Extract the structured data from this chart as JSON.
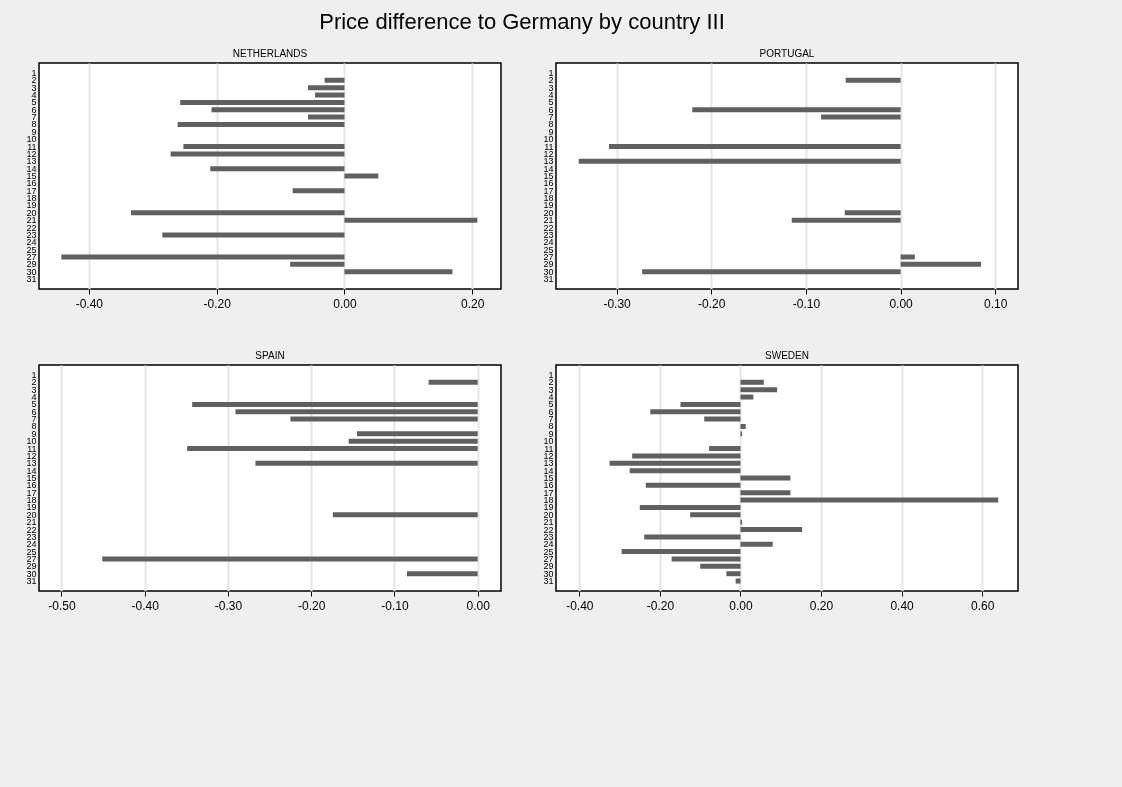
{
  "chart_data": [
    {
      "type": "bar",
      "orientation": "horizontal",
      "title": "Price difference to Germany by country III",
      "subtitle": "NETHERLANDS",
      "categories": [
        "1",
        "2",
        "3",
        "4",
        "5",
        "6",
        "7",
        "8",
        "9",
        "10",
        "11",
        "12",
        "13",
        "14",
        "15",
        "16",
        "17",
        "18",
        "19",
        "20",
        "21",
        "22",
        "23",
        "24",
        "25",
        "27",
        "29",
        "30",
        "31"
      ],
      "values": [
        null,
        -0.031,
        -0.057,
        -0.046,
        -0.257,
        -0.208,
        -0.057,
        -0.261,
        null,
        null,
        -0.252,
        -0.272,
        null,
        -0.21,
        0.053,
        null,
        -0.081,
        null,
        null,
        -0.334,
        0.208,
        null,
        -0.285,
        null,
        null,
        -0.443,
        -0.085,
        0.169,
        null
      ],
      "color": "#606060",
      "xlim": [
        -0.478,
        0.245
      ],
      "xticks": [
        {
          "value": -0.4,
          "label": "-0.40"
        },
        {
          "value": -0.2,
          "label": "-0.20"
        },
        {
          "value": 0,
          "label": "0.00"
        },
        {
          "value": 0.2,
          "label": "0.20"
        }
      ],
      "grid": "x"
    },
    {
      "type": "bar",
      "orientation": "horizontal",
      "subtitle": "PORTUGAL",
      "categories": [
        "1",
        "2",
        "3",
        "4",
        "5",
        "6",
        "7",
        "8",
        "9",
        "10",
        "11",
        "12",
        "13",
        "14",
        "15",
        "16",
        "17",
        "18",
        "19",
        "20",
        "21",
        "22",
        "23",
        "24",
        "25",
        "27",
        "29",
        "30",
        "31"
      ],
      "values": [
        null,
        -0.058,
        null,
        null,
        null,
        -0.22,
        -0.084,
        null,
        null,
        null,
        -0.308,
        null,
        -0.34,
        null,
        null,
        null,
        null,
        null,
        null,
        -0.059,
        -0.115,
        null,
        null,
        null,
        null,
        0.015,
        0.085,
        -0.273,
        null
      ],
      "color": "#606060",
      "xlim": [
        -0.364,
        0.124
      ],
      "xticks": [
        {
          "value": -0.3,
          "label": "-0.30"
        },
        {
          "value": -0.2,
          "label": "-0.20"
        },
        {
          "value": -0.1,
          "label": "-0.10"
        },
        {
          "value": 0,
          "label": "0.00"
        },
        {
          "value": 0.1,
          "label": "0.10"
        }
      ],
      "grid": "x"
    },
    {
      "type": "bar",
      "orientation": "horizontal",
      "subtitle": "SPAIN",
      "categories": [
        "1",
        "2",
        "3",
        "4",
        "5",
        "6",
        "7",
        "8",
        "9",
        "10",
        "11",
        "12",
        "13",
        "14",
        "15",
        "16",
        "17",
        "18",
        "19",
        "20",
        "21",
        "22",
        "23",
        "24",
        "25",
        "27",
        "29",
        "30",
        "31"
      ],
      "values": [
        null,
        -0.059,
        null,
        null,
        -0.343,
        -0.291,
        -0.225,
        null,
        -0.145,
        -0.155,
        -0.349,
        null,
        -0.267,
        null,
        null,
        null,
        null,
        null,
        null,
        -0.174,
        null,
        null,
        null,
        null,
        null,
        -0.451,
        null,
        -0.085,
        null
      ],
      "color": "#606060",
      "xlim": [
        -0.527,
        0.028
      ],
      "xticks": [
        {
          "value": -0.5,
          "label": "-0.50"
        },
        {
          "value": -0.4,
          "label": "-0.40"
        },
        {
          "value": -0.3,
          "label": "-0.30"
        },
        {
          "value": -0.2,
          "label": "-0.20"
        },
        {
          "value": -0.1,
          "label": "-0.10"
        },
        {
          "value": 0,
          "label": "0.00"
        }
      ],
      "grid": "x"
    },
    {
      "type": "bar",
      "orientation": "horizontal",
      "subtitle": "SWEDEN",
      "categories": [
        "1",
        "2",
        "3",
        "4",
        "5",
        "6",
        "7",
        "8",
        "9",
        "10",
        "11",
        "12",
        "13",
        "14",
        "15",
        "16",
        "17",
        "18",
        "19",
        "20",
        "21",
        "22",
        "23",
        "24",
        "25",
        "27",
        "29",
        "30",
        "31"
      ],
      "values": [
        null,
        0.058,
        0.091,
        0.032,
        -0.149,
        -0.224,
        -0.09,
        0.013,
        0.004,
        null,
        -0.078,
        -0.269,
        -0.325,
        -0.275,
        0.124,
        -0.235,
        0.124,
        0.64,
        -0.25,
        -0.125,
        0.004,
        0.153,
        -0.239,
        0.08,
        -0.295,
        -0.171,
        -0.1,
        -0.035,
        -0.012
      ],
      "color": "#606060",
      "xlim": [
        -0.458,
        0.689
      ],
      "xticks": [
        {
          "value": -0.4,
          "label": "-0.40"
        },
        {
          "value": -0.2,
          "label": "-0.20"
        },
        {
          "value": 0,
          "label": "0.00"
        },
        {
          "value": 0.2,
          "label": "0.20"
        },
        {
          "value": 0.4,
          "label": "0.40"
        },
        {
          "value": 0.6,
          "label": "0.60"
        }
      ],
      "grid": "x"
    }
  ]
}
